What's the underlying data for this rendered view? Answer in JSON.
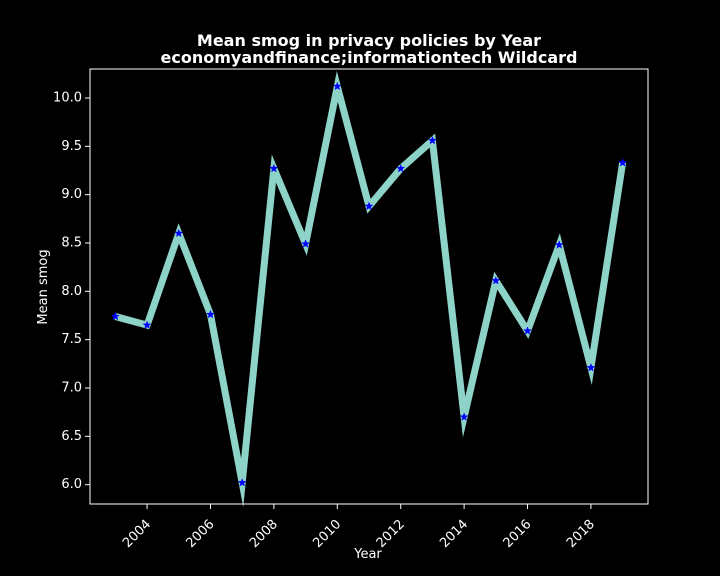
{
  "chart_data": {
    "type": "line",
    "title": "Mean smog in privacy policies by Year",
    "subtitle": "economyandfinance;informationtech Wildcard",
    "xlabel": "Year",
    "ylabel": "Mean smog",
    "x": [
      2003,
      2004,
      2005,
      2006,
      2007,
      2008,
      2009,
      2010,
      2011,
      2012,
      2013,
      2014,
      2015,
      2016,
      2017,
      2018,
      2019
    ],
    "series": [
      {
        "values": [
          7.74,
          7.65,
          8.6,
          7.76,
          6.02,
          9.27,
          8.49,
          10.12,
          8.88,
          9.27,
          9.56,
          6.7,
          8.11,
          7.59,
          8.48,
          7.21,
          9.33
        ]
      }
    ],
    "xticks": [
      "2004",
      "2006",
      "2008",
      "2010",
      "2012",
      "2014",
      "2016",
      "2018"
    ],
    "yticks": [
      "6.0",
      "6.5",
      "7.0",
      "7.5",
      "8.0",
      "8.5",
      "9.0",
      "9.5",
      "10.0"
    ],
    "xlim": [
      2002.2,
      2019.8
    ],
    "ylim": [
      5.8,
      10.3
    ],
    "grid": false,
    "colors": {
      "background": "#000000",
      "line": "#8dd3c7",
      "marker": "#0000ff",
      "axes": "#ffffff",
      "text": "#ffffff"
    }
  }
}
